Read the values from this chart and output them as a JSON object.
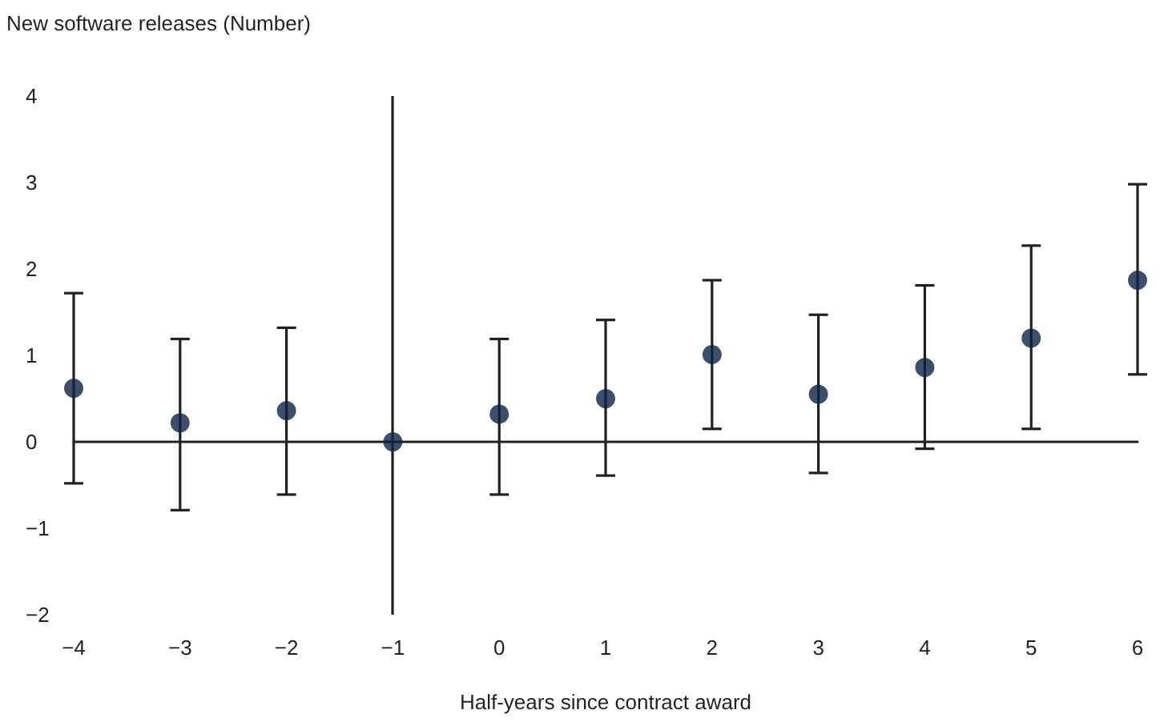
{
  "chart_data": {
    "type": "scatter",
    "ylabel": "New software releases (Number)",
    "xlabel": "Half-years since contract award",
    "x": [
      -4,
      -3,
      -2,
      -1,
      0,
      1,
      2,
      3,
      4,
      5,
      6
    ],
    "series": [
      {
        "color": "#0b2244",
        "values": [
          0.62,
          0.22,
          0.36,
          0,
          0.32,
          0.5,
          1.01,
          0.55,
          0.86,
          1.2,
          1.87
        ],
        "errors": [
          [
            -0.48,
            1.72
          ],
          [
            -0.79,
            1.19
          ],
          [
            -0.61,
            1.32
          ],
          null,
          [
            -0.61,
            1.19
          ],
          [
            -0.39,
            1.41
          ],
          [
            0.15,
            1.87
          ],
          [
            -0.36,
            1.47
          ],
          [
            -0.08,
            1.81
          ],
          [
            0.15,
            2.27
          ],
          [
            0.78,
            2.98
          ]
        ]
      }
    ],
    "xlim": [
      -4,
      6
    ],
    "xticks": [
      -4,
      -3,
      -2,
      -1,
      0,
      1,
      2,
      3,
      4,
      5,
      6
    ],
    "ylim": [
      -2,
      4
    ],
    "yticks": [
      -2,
      -1,
      0,
      1,
      2,
      3,
      4
    ],
    "ref_lines": [
      {
        "axis": "x",
        "value": -1
      }
    ],
    "marker": "circle"
  }
}
